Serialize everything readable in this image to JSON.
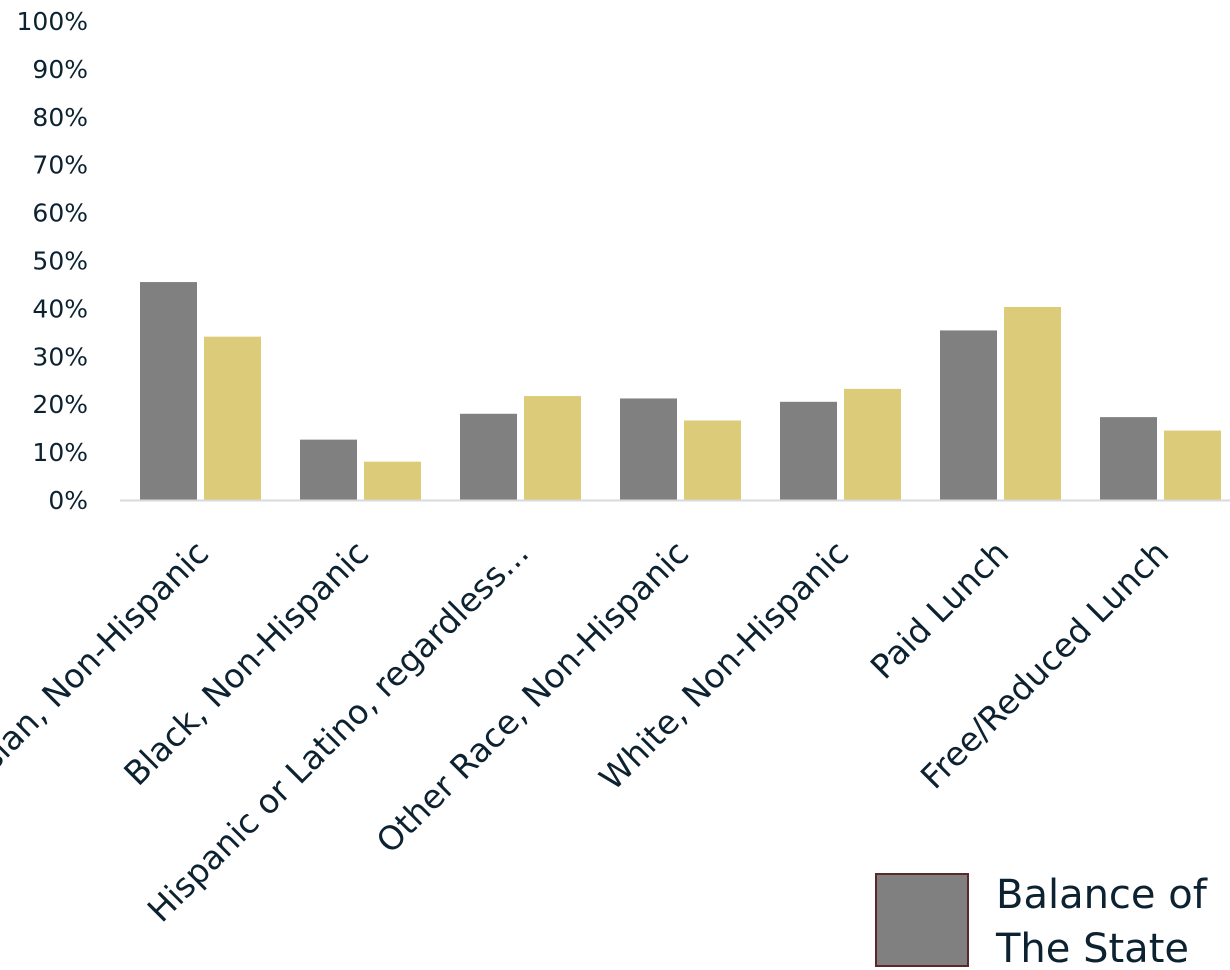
{
  "chart_data": {
    "type": "bar",
    "categories": [
      "Asian, Non-Hispanic",
      "Black, Non-Hispanic",
      "Hispanic or Latino, regardless...",
      "Other Race, Non-Hispanic",
      "White, Non-Hispanic",
      "Paid Lunch",
      "Free/Reduced Lunch"
    ],
    "series": [
      {
        "name": "Balance of The State",
        "color": "#808080",
        "values": [
          45.5,
          12.6,
          18.0,
          21.2,
          20.5,
          35.4,
          17.3
        ]
      },
      {
        "color": "#dccb78",
        "values": [
          34.1,
          8.0,
          21.7,
          16.6,
          23.2,
          40.3,
          14.5
        ]
      }
    ],
    "ylim": [
      0,
      100
    ],
    "yticks": [
      0,
      10,
      20,
      30,
      40,
      50,
      60,
      70,
      80,
      90,
      100
    ],
    "ytick_format": "percent",
    "legend": {
      "position": "bottom-right",
      "entry_lines": [
        "Balance of",
        "The State"
      ],
      "swatch_border": "#5a2a2a"
    },
    "axis_color": "#d9d9d9",
    "grid": false
  }
}
